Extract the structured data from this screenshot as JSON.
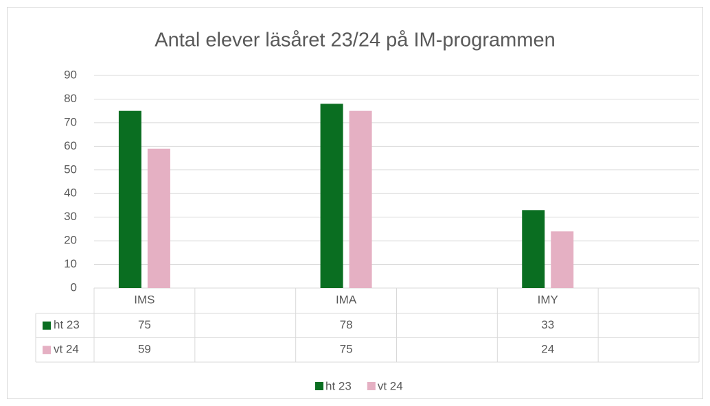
{
  "chart_data": {
    "type": "bar",
    "title": "Antal elever läsåret 23/24 på IM-programmen",
    "categories": [
      "IMS",
      null,
      "IMA",
      null,
      "IMY",
      null
    ],
    "series": [
      {
        "name": "ht 23",
        "color": "#0a6e21",
        "values": [
          75,
          null,
          78,
          null,
          33,
          null
        ]
      },
      {
        "name": "vt 24",
        "color": "#e5b0c3",
        "values": [
          59,
          null,
          75,
          null,
          24,
          null
        ]
      }
    ],
    "ylim": [
      0,
      90
    ],
    "yticks": [
      0,
      10,
      20,
      30,
      40,
      50,
      60,
      70,
      80,
      90
    ],
    "grid": true,
    "data_table": true,
    "legend": "bottom"
  }
}
